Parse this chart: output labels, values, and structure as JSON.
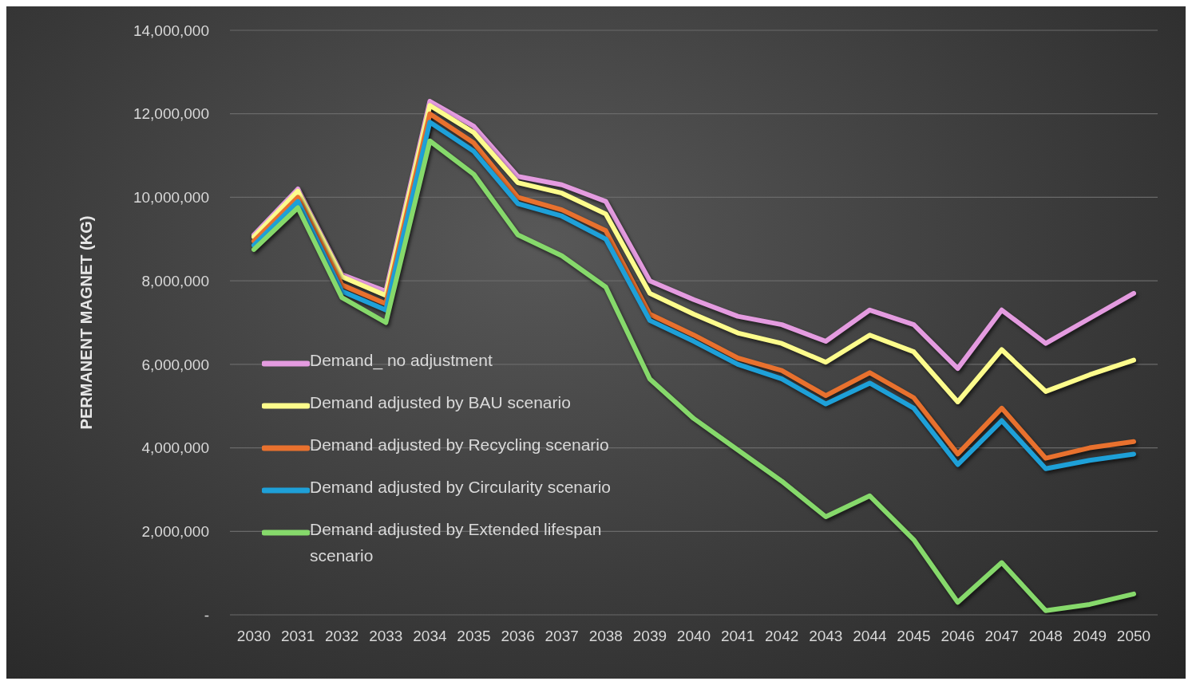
{
  "chart_data": {
    "type": "line",
    "ylabel": "PERMANENT MAGNET (KG)",
    "categories": [
      "2030",
      "2031",
      "2032",
      "2033",
      "2034",
      "2035",
      "2036",
      "2037",
      "2038",
      "2039",
      "2040",
      "2041",
      "2042",
      "2043",
      "2044",
      "2045",
      "2046",
      "2047",
      "2048",
      "2049",
      "2050"
    ],
    "ylim": [
      0,
      14000000
    ],
    "yticks": [
      {
        "value": 0,
        "label": "-"
      },
      {
        "value": 2000000,
        "label": "2,000,000"
      },
      {
        "value": 4000000,
        "label": "4,000,000"
      },
      {
        "value": 6000000,
        "label": "6,000,000"
      },
      {
        "value": 8000000,
        "label": "8,000,000"
      },
      {
        "value": 10000000,
        "label": "10,000,000"
      },
      {
        "value": 12000000,
        "label": "12,000,000"
      },
      {
        "value": 14000000,
        "label": "14,000,000"
      }
    ],
    "grid": "y",
    "legend": "bottom left",
    "marker": "none",
    "line_style": "solid",
    "series": [
      {
        "name": "Demand_ no adjustment",
        "color": "#e49be0",
        "values": [
          9100000,
          10200000,
          8150000,
          7750000,
          12300000,
          11700000,
          10500000,
          10300000,
          9900000,
          8000000,
          7550000,
          7150000,
          6950000,
          6550000,
          7300000,
          6950000,
          5900000,
          7300000,
          6500000,
          7100000,
          7700000
        ]
      },
      {
        "name": "Demand adjusted by BAU scenario",
        "color": "#fdfc8c",
        "values": [
          9050000,
          10150000,
          8100000,
          7650000,
          12200000,
          11550000,
          10350000,
          10100000,
          9600000,
          7700000,
          7200000,
          6750000,
          6500000,
          6050000,
          6700000,
          6300000,
          5100000,
          6350000,
          5350000,
          5750000,
          6100000
        ]
      },
      {
        "name": "Demand adjusted by Recycling scenario",
        "color": "#e8712e",
        "values": [
          8950000,
          10000000,
          7900000,
          7450000,
          12000000,
          11300000,
          10000000,
          9700000,
          9200000,
          7200000,
          6700000,
          6150000,
          5850000,
          5250000,
          5800000,
          5200000,
          3850000,
          4950000,
          3750000,
          4000000,
          4150000
        ]
      },
      {
        "name": "Demand adjusted by Circularity scenario",
        "color": "#1ea0d8",
        "values": [
          8850000,
          9900000,
          7750000,
          7300000,
          11800000,
          11100000,
          9850000,
          9550000,
          9000000,
          7050000,
          6550000,
          6000000,
          5650000,
          5050000,
          5550000,
          4950000,
          3600000,
          4650000,
          3500000,
          3700000,
          3850000
        ]
      },
      {
        "name": "Demand adjusted by Extended lifespan scenario",
        "color": "#86d96b",
        "values": [
          8750000,
          9750000,
          7600000,
          7000000,
          11350000,
          10550000,
          9100000,
          8600000,
          7850000,
          5650000,
          4700000,
          3950000,
          3200000,
          2350000,
          2850000,
          1800000,
          300000,
          1250000,
          100000,
          250000,
          500000
        ]
      }
    ]
  }
}
